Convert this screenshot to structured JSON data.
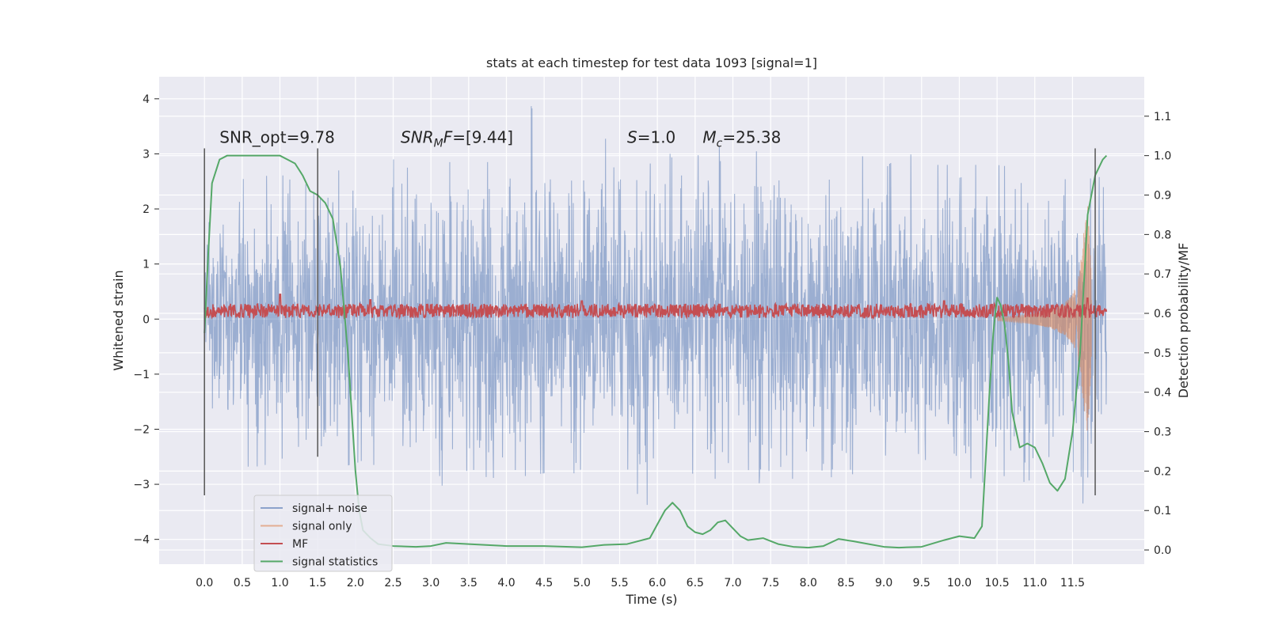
{
  "chart_data": {
    "type": "line",
    "title": "stats at each timestep for test data 1093 [signal=1]",
    "xlabel": "Time (s)",
    "ylabel_left": "Whitened strain",
    "ylabel_right": "Detection probability/MF",
    "xlim": [
      -0.6,
      12.45
    ],
    "ylim_left": [
      -4.45,
      4.4
    ],
    "ylim_right": [
      -0.036,
      1.2
    ],
    "x_ticks": [
      0.0,
      0.5,
      1.0,
      1.5,
      2.0,
      2.5,
      3.0,
      3.5,
      4.0,
      4.5,
      5.0,
      5.5,
      6.0,
      6.5,
      7.0,
      7.5,
      8.0,
      8.5,
      9.0,
      9.5,
      10.0,
      10.5,
      11.0,
      11.5
    ],
    "x_tick_labels": [
      "0.0",
      "0.5",
      "1.0",
      "1.5",
      "2.0",
      "2.5",
      "3.0",
      "3.5",
      "4.0",
      "4.5",
      "5.0",
      "5.5",
      "6.0",
      "6.5",
      "7.0",
      "7.5",
      "8.0",
      "8.5",
      "9.0",
      "9.5",
      "10.0",
      "10.5",
      "11.0",
      "11.5"
    ],
    "y_left_ticks": [
      -4,
      -3,
      -2,
      -1,
      0,
      1,
      2,
      3,
      4
    ],
    "y_left_tick_labels": [
      "−4",
      "−3",
      "−2",
      "−1",
      "0",
      "1",
      "2",
      "3",
      "4"
    ],
    "y_right_ticks": [
      0.0,
      0.1,
      0.2,
      0.3,
      0.4,
      0.5,
      0.6,
      0.7,
      0.8,
      0.9,
      1.0,
      1.1
    ],
    "y_right_tick_labels": [
      "0.0",
      "0.1",
      "0.2",
      "0.3",
      "0.4",
      "0.5",
      "0.6",
      "0.7",
      "0.8",
      "0.9",
      "1.0",
      "1.1"
    ],
    "grid": true,
    "legend_placement": "lower-left",
    "vertical_markers": [
      {
        "x": 0.0,
        "y": [
          -3.2,
          3.1
        ]
      },
      {
        "x": 1.5,
        "y": [
          -2.5,
          3.1
        ]
      },
      {
        "x": 11.8,
        "y": [
          -3.2,
          3.1
        ]
      }
    ],
    "annotations": [
      {
        "text": "SNR_opt=9.78",
        "x": 0.2,
        "y": 3.2
      },
      {
        "text": "SNR",
        "sub": "M",
        "rest": "F=[9.44]",
        "italic": true,
        "x": 2.6,
        "y": 3.2
      },
      {
        "text": "S",
        "rest": "=1.0",
        "italic": true,
        "x": 5.6,
        "y": 3.2
      },
      {
        "text": "M",
        "sub": "c",
        "rest": "=25.38",
        "italic": true,
        "x": 6.6,
        "y": 3.2
      }
    ],
    "series": [
      {
        "name": "signal+ noise",
        "color": "#4c72b0",
        "axis": "left",
        "description": "dense noise trace, envelope approx",
        "x_range": [
          0.0,
          11.95
        ],
        "upper_envelope": [
          [
            0.0,
            1.6
          ],
          [
            0.3,
            2.4
          ],
          [
            0.6,
            2.6
          ],
          [
            1.0,
            2.6
          ],
          [
            1.5,
            2.7
          ],
          [
            2.0,
            2.7
          ],
          [
            2.5,
            2.9
          ],
          [
            3.0,
            2.8
          ],
          [
            3.5,
            2.9
          ],
          [
            4.0,
            2.9
          ],
          [
            4.3,
            4.0
          ],
          [
            4.5,
            3.1
          ],
          [
            5.0,
            3.3
          ],
          [
            5.05,
            3.8
          ],
          [
            5.5,
            2.9
          ],
          [
            6.0,
            2.9
          ],
          [
            6.5,
            3.2
          ],
          [
            7.0,
            3.1
          ],
          [
            7.5,
            3.1
          ],
          [
            8.0,
            2.8
          ],
          [
            8.5,
            3.0
          ],
          [
            9.0,
            2.9
          ],
          [
            9.1,
            3.9
          ],
          [
            9.5,
            2.8
          ],
          [
            10.0,
            2.8
          ],
          [
            10.5,
            2.8
          ],
          [
            11.0,
            2.7
          ],
          [
            11.5,
            2.5
          ],
          [
            11.95,
            2.6
          ]
        ],
        "lower_envelope": [
          [
            0.0,
            -1.2
          ],
          [
            0.3,
            -2.4
          ],
          [
            0.6,
            -2.7
          ],
          [
            1.0,
            -2.6
          ],
          [
            1.5,
            -2.9
          ],
          [
            2.0,
            -2.6
          ],
          [
            2.5,
            -2.7
          ],
          [
            3.0,
            -2.8
          ],
          [
            3.2,
            -3.4
          ],
          [
            3.5,
            -2.7
          ],
          [
            3.8,
            -4.1
          ],
          [
            4.0,
            -2.9
          ],
          [
            4.5,
            -2.8
          ],
          [
            5.0,
            -2.8
          ],
          [
            5.5,
            -2.7
          ],
          [
            5.8,
            -3.6
          ],
          [
            6.0,
            -2.9
          ],
          [
            6.5,
            -2.8
          ],
          [
            7.0,
            -3.2
          ],
          [
            7.5,
            -2.9
          ],
          [
            8.0,
            -2.9
          ],
          [
            8.2,
            -3.4
          ],
          [
            8.5,
            -2.8
          ],
          [
            9.0,
            -2.9
          ],
          [
            9.5,
            -2.9
          ],
          [
            10.0,
            -2.8
          ],
          [
            10.5,
            -3.1
          ],
          [
            11.0,
            -2.9
          ],
          [
            11.5,
            -2.8
          ],
          [
            11.7,
            -3.6
          ],
          [
            11.95,
            -2.3
          ]
        ]
      },
      {
        "name": "signal only",
        "color": "#dd8452",
        "axis": "left",
        "description": "chirp growing toward merger near 11.7 s",
        "x": [
          10.5,
          10.8,
          11.0,
          11.2,
          11.4,
          11.5,
          11.55,
          11.6,
          11.65,
          11.7,
          11.75
        ],
        "amplitude": [
          0.03,
          0.06,
          0.1,
          0.16,
          0.3,
          0.45,
          0.6,
          0.9,
          1.6,
          2.1,
          0.8
        ]
      },
      {
        "name": "MF",
        "color": "#c44e52",
        "axis": "left",
        "description": "band of values around 0.15",
        "x_range": [
          0.0,
          11.95
        ],
        "band": [
          0.0,
          0.3
        ],
        "peaks": [
          [
            1.0,
            0.45
          ],
          [
            2.2,
            0.35
          ],
          [
            5.0,
            0.33
          ],
          [
            9.8,
            0.33
          ],
          [
            11.7,
            0.38
          ]
        ]
      },
      {
        "name": "signal statistics",
        "color": "#55a868",
        "axis": "right",
        "x": [
          0.0,
          0.05,
          0.1,
          0.2,
          0.3,
          0.5,
          0.8,
          1.0,
          1.1,
          1.2,
          1.3,
          1.4,
          1.5,
          1.6,
          1.7,
          1.8,
          1.9,
          2.0,
          2.05,
          2.1,
          2.2,
          2.3,
          2.5,
          2.8,
          3.0,
          3.2,
          3.5,
          4.0,
          4.5,
          5.0,
          5.3,
          5.6,
          5.9,
          6.0,
          6.1,
          6.2,
          6.3,
          6.4,
          6.5,
          6.6,
          6.7,
          6.8,
          6.9,
          7.0,
          7.1,
          7.2,
          7.4,
          7.6,
          7.8,
          8.0,
          8.2,
          8.4,
          8.6,
          8.8,
          9.0,
          9.2,
          9.5,
          9.8,
          10.0,
          10.2,
          10.3,
          10.4,
          10.45,
          10.5,
          10.55,
          10.6,
          10.65,
          10.7,
          10.8,
          10.9,
          11.0,
          11.1,
          11.2,
          11.3,
          11.4,
          11.5,
          11.6,
          11.7,
          11.8,
          11.9,
          11.95
        ],
        "y": [
          0.55,
          0.75,
          0.93,
          0.99,
          1.0,
          1.0,
          1.0,
          1.0,
          0.99,
          0.98,
          0.95,
          0.91,
          0.9,
          0.88,
          0.84,
          0.72,
          0.5,
          0.2,
          0.1,
          0.05,
          0.03,
          0.015,
          0.01,
          0.008,
          0.01,
          0.018,
          0.015,
          0.01,
          0.01,
          0.007,
          0.013,
          0.015,
          0.03,
          0.065,
          0.1,
          0.12,
          0.1,
          0.06,
          0.045,
          0.04,
          0.05,
          0.07,
          0.075,
          0.055,
          0.035,
          0.025,
          0.03,
          0.015,
          0.008,
          0.006,
          0.01,
          0.028,
          0.022,
          0.015,
          0.008,
          0.006,
          0.008,
          0.025,
          0.035,
          0.03,
          0.06,
          0.4,
          0.55,
          0.64,
          0.62,
          0.57,
          0.48,
          0.35,
          0.26,
          0.27,
          0.26,
          0.22,
          0.17,
          0.15,
          0.18,
          0.3,
          0.5,
          0.85,
          0.95,
          0.99,
          1.0
        ]
      }
    ]
  }
}
